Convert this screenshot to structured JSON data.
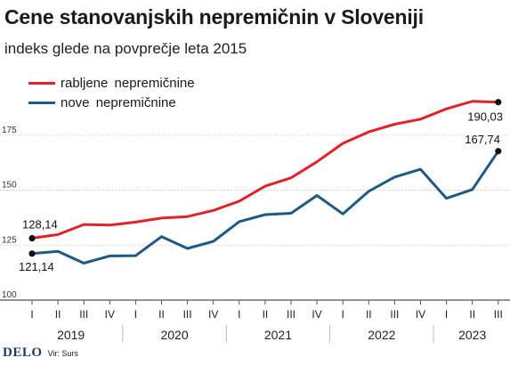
{
  "header": {
    "title": "Cene stanovanjskih nepremičnin v Sloveniji",
    "subtitle": "indeks glede na povprečje leta 2015"
  },
  "footer": {
    "brand": "DELO",
    "source": "Vir: Surs"
  },
  "chart_data": {
    "type": "line",
    "title": "Cene stanovanjskih nepremičnin v Sloveniji",
    "subtitle": "indeks glede na povprečje leta 2015",
    "ylim": [
      100,
      192
    ],
    "yticks": [
      100,
      125,
      150,
      175
    ],
    "grid": true,
    "legend_position": "top-left",
    "categories": [
      "I",
      "II",
      "III",
      "IV",
      "I",
      "II",
      "III",
      "IV",
      "I",
      "II",
      "III",
      "IV",
      "I",
      "II",
      "III",
      "IV",
      "I",
      "II",
      "III"
    ],
    "years": [
      {
        "label": "2019",
        "start": 0,
        "end": 3
      },
      {
        "label": "2020",
        "start": 4,
        "end": 7
      },
      {
        "label": "2021",
        "start": 8,
        "end": 11
      },
      {
        "label": "2022",
        "start": 12,
        "end": 15
      },
      {
        "label": "2023",
        "start": 16,
        "end": 18
      }
    ],
    "series": [
      {
        "name": "rabljene nepremičnine",
        "color": "#e0232b",
        "values": [
          128.14,
          129.8,
          134.4,
          134.1,
          135.5,
          137.3,
          138.0,
          140.8,
          145.0,
          151.8,
          155.6,
          162.9,
          171.3,
          176.5,
          180.0,
          182.3,
          187.0,
          190.4,
          190.03
        ],
        "end_label": "190,03"
      },
      {
        "name": "nove nepremičnine",
        "color": "#1f5a85",
        "values": [
          121.14,
          122.2,
          116.8,
          120.1,
          120.2,
          128.9,
          123.5,
          126.7,
          135.7,
          138.9,
          139.5,
          147.6,
          139.2,
          149.5,
          156.0,
          159.5,
          146.3,
          150.3,
          167.74
        ],
        "start_label": "121,14",
        "end_label": "167,74"
      }
    ],
    "start_label_red": "128,14"
  }
}
